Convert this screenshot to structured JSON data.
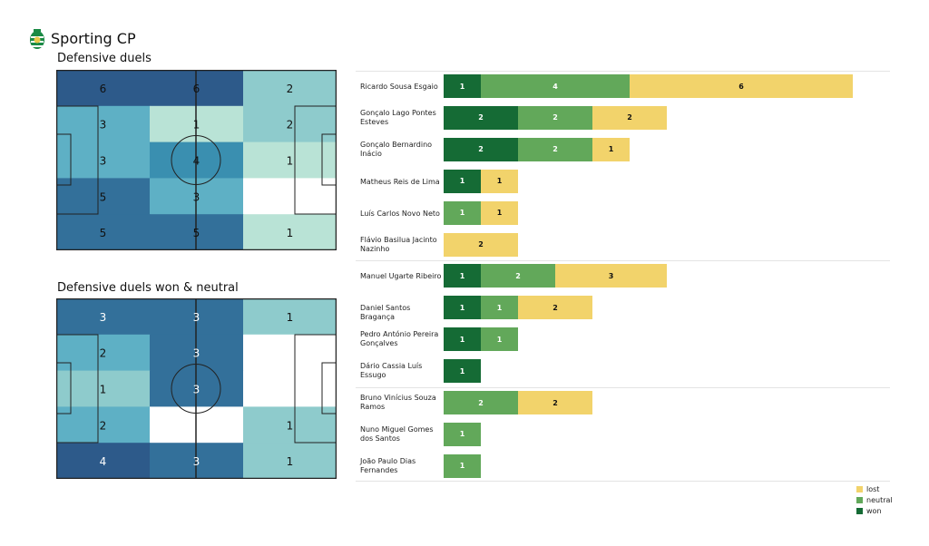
{
  "header": {
    "team": "Sporting CP",
    "logo_icon": "sporting-lion-crest"
  },
  "chart_data": [
    {
      "type": "heatmap",
      "title": "Defensive duels",
      "rows": 5,
      "cols": 3,
      "values": [
        [
          6,
          6,
          2
        ],
        [
          3,
          1,
          2
        ],
        [
          3,
          4,
          1
        ],
        [
          5,
          3,
          0
        ],
        [
          5,
          5,
          1
        ]
      ],
      "labels": [
        [
          "6",
          "6",
          "2"
        ],
        [
          "3",
          "1",
          "2"
        ],
        [
          "3",
          "4",
          "1"
        ],
        [
          "5",
          "3",
          ""
        ],
        [
          "5",
          "5",
          "1"
        ]
      ]
    },
    {
      "type": "heatmap",
      "title": "Defensive duels won & neutral",
      "rows": 5,
      "cols": 3,
      "values": [
        [
          3,
          3,
          1
        ],
        [
          2,
          3,
          0
        ],
        [
          1,
          3,
          0
        ],
        [
          2,
          0,
          1
        ],
        [
          4,
          3,
          1
        ]
      ],
      "labels": [
        [
          "3",
          "3",
          "1"
        ],
        [
          "2",
          "3",
          ""
        ],
        [
          "1",
          "3",
          ""
        ],
        [
          "2",
          "",
          "1"
        ],
        [
          "4",
          "3",
          "1"
        ]
      ]
    },
    {
      "type": "bar",
      "stacked": true,
      "orientation": "horizontal",
      "series_names": [
        "won",
        "neutral",
        "lost"
      ],
      "colors": {
        "won": "#156b35",
        "neutral": "#62a85a",
        "lost": "#f2d36b"
      },
      "legend": {
        "position": "bottom-right",
        "items": [
          "lost",
          "neutral",
          "won"
        ]
      },
      "players": [
        {
          "name": "Ricardo Sousa Esgaio",
          "won": 1,
          "neutral": 4,
          "lost": 6
        },
        {
          "name": "Gonçalo Lago Pontes Esteves",
          "won": 2,
          "neutral": 2,
          "lost": 2
        },
        {
          "name": "Gonçalo Bernardino Inácio",
          "won": 2,
          "neutral": 2,
          "lost": 1
        },
        {
          "name": "Matheus Reis de Lima",
          "won": 1,
          "neutral": 0,
          "lost": 1
        },
        {
          "name": "Luís Carlos Novo Neto",
          "won": 0,
          "neutral": 1,
          "lost": 1
        },
        {
          "name": "Flávio Basilua Jacinto Nazinho",
          "won": 0,
          "neutral": 0,
          "lost": 2
        },
        {
          "name": "Manuel Ugarte Ribeiro",
          "won": 1,
          "neutral": 2,
          "lost": 3
        },
        {
          "name": "Daniel Santos Bragança",
          "won": 1,
          "neutral": 1,
          "lost": 2
        },
        {
          "name": "Pedro António Pereira Gonçalves",
          "won": 1,
          "neutral": 1,
          "lost": 0
        },
        {
          "name": "Dário Cassia Luís Essugo",
          "won": 1,
          "neutral": 0,
          "lost": 0
        },
        {
          "name": "Bruno Vinícius Souza Ramos",
          "won": 0,
          "neutral": 2,
          "lost": 2
        },
        {
          "name": "Nuno Miguel Gomes dos Santos",
          "won": 0,
          "neutral": 1,
          "lost": 0
        },
        {
          "name": "João Paulo Dias Fernandes",
          "won": 0,
          "neutral": 1,
          "lost": 0
        }
      ],
      "group_separators_after": [
        5,
        9
      ]
    }
  ]
}
